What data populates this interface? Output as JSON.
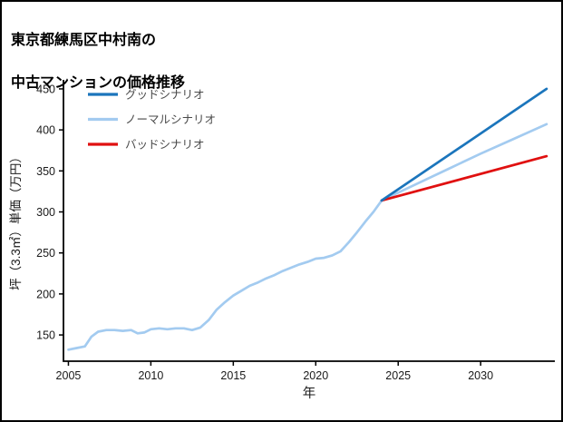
{
  "page": {
    "title_line1": "東京都練馬区中村南の",
    "title_line2": "中古マンションの価格推移"
  },
  "chart_data": {
    "type": "line",
    "title": "東京都練馬区中村南の中古マンションの価格推移",
    "xlabel": "年",
    "ylabel": "坪（3.3㎡）単価（万円）",
    "xlim": [
      2004.7,
      2034.5
    ],
    "ylim": [
      118,
      461
    ],
    "xticks": [
      2005,
      2010,
      2015,
      2020,
      2025,
      2030
    ],
    "yticks": [
      150,
      200,
      250,
      300,
      350,
      400,
      450
    ],
    "grid": false,
    "legend_position": "top-left",
    "axis_color": "#000000",
    "text_color": "#1a1a1a",
    "legend_text_color": "#4a4a4a",
    "draw_order": [
      1,
      2,
      0
    ],
    "series": [
      {
        "name": "グッドシナリオ",
        "color": "#1b75bc",
        "x": [
          2024,
          2034
        ],
        "values": [
          314,
          450
        ]
      },
      {
        "name": "ノーマルシナリオ",
        "color": "#a3cbf0",
        "x": [
          2005,
          2005.5,
          2006,
          2006.4,
          2006.8,
          2007.3,
          2007.8,
          2008.3,
          2008.8,
          2009.2,
          2009.6,
          2010,
          2010.5,
          2011,
          2011.5,
          2012,
          2012.5,
          2013,
          2013.5,
          2014,
          2014.5,
          2015,
          2015.5,
          2016,
          2016.5,
          2017,
          2017.5,
          2018,
          2018.5,
          2019,
          2019.5,
          2020,
          2020.5,
          2021,
          2021.5,
          2022,
          2022.5,
          2023,
          2023.5,
          2024,
          2026,
          2028,
          2030,
          2032,
          2034
        ],
        "values": [
          132,
          134,
          136,
          148,
          154,
          156,
          156,
          155,
          156,
          152,
          153,
          157,
          158,
          157,
          158,
          158,
          156,
          159,
          168,
          181,
          190,
          198,
          204,
          210,
          214,
          219,
          223,
          228,
          232,
          236,
          239,
          243,
          244,
          247,
          252,
          263,
          275,
          288,
          300,
          314,
          333,
          352,
          371,
          389,
          407
        ]
      },
      {
        "name": "バッドシナリオ",
        "color": "#e01010",
        "x": [
          2024,
          2034
        ],
        "values": [
          314,
          368
        ]
      }
    ]
  }
}
